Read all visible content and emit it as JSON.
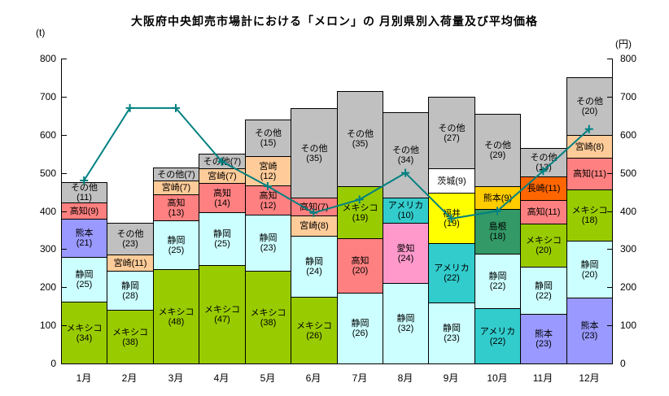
{
  "title": "大阪府中央卸売市場計における「メロン」の 月別県別入荷量及び平均価格",
  "axes": {
    "left_unit": "(t)",
    "right_unit": "(円)",
    "y_min": 0,
    "y_max": 800,
    "y_step": 100
  },
  "chart_data": {
    "type": "bar",
    "subtype": "stacked-percentage-bars-with-price-line",
    "grid": false,
    "legend": false,
    "ylim_left": [
      0,
      800
    ],
    "ylim_right": [
      0,
      800
    ],
    "ylabel_left": "(t)",
    "ylabel_right": "(円)",
    "categories": [
      "1月",
      "2月",
      "3月",
      "4月",
      "5月",
      "6月",
      "7月",
      "8月",
      "9月",
      "10月",
      "11月",
      "12月"
    ],
    "bar_value_unit": "t (total height); segment labels are percent shares",
    "bars": [
      {
        "month": "1月",
        "total": 475,
        "segments": [
          {
            "name": "メキシコ",
            "pct": 34,
            "color": "#99CC00",
            "two_line": true
          },
          {
            "name": "静岡",
            "pct": 25,
            "color": "#CCFFFF",
            "two_line": true
          },
          {
            "name": "熊本",
            "pct": 21,
            "color": "#9999FF",
            "two_line": true
          },
          {
            "name": "高知",
            "pct": 9,
            "color": "#FF8080",
            "two_line": false
          },
          {
            "name": "その他",
            "pct": 11,
            "color": "#C0C0C0",
            "two_line": true
          }
        ]
      },
      {
        "month": "2月",
        "total": 370,
        "segments": [
          {
            "name": "メキシコ",
            "pct": 38,
            "color": "#99CC00",
            "two_line": true
          },
          {
            "name": "静岡",
            "pct": 28,
            "color": "#CCFFFF",
            "two_line": true
          },
          {
            "name": "宮崎",
            "pct": 11,
            "color": "#FFCC99",
            "two_line": false
          },
          {
            "name": "その他",
            "pct": 23,
            "color": "#C0C0C0",
            "two_line": true
          }
        ]
      },
      {
        "month": "3月",
        "total": 515,
        "segments": [
          {
            "name": "メキシコ",
            "pct": 48,
            "color": "#99CC00",
            "two_line": true
          },
          {
            "name": "静岡",
            "pct": 25,
            "color": "#CCFFFF",
            "two_line": true
          },
          {
            "name": "高知",
            "pct": 13,
            "color": "#FF8080",
            "two_line": true
          },
          {
            "name": "宮崎",
            "pct": 7,
            "color": "#FFCC99",
            "two_line": false
          },
          {
            "name": "その他",
            "pct": 7,
            "color": "#C0C0C0",
            "two_line": false
          }
        ]
      },
      {
        "month": "4月",
        "total": 550,
        "segments": [
          {
            "name": "メキシコ",
            "pct": 47,
            "color": "#99CC00",
            "two_line": true
          },
          {
            "name": "静岡",
            "pct": 25,
            "color": "#CCFFFF",
            "two_line": true
          },
          {
            "name": "高知",
            "pct": 14,
            "color": "#FF8080",
            "two_line": true
          },
          {
            "name": "宮崎",
            "pct": 7,
            "color": "#FFCC99",
            "two_line": false
          },
          {
            "name": "その他",
            "pct": 7,
            "color": "#C0C0C0",
            "two_line": false
          }
        ]
      },
      {
        "month": "5月",
        "total": 640,
        "segments": [
          {
            "name": "メキシコ",
            "pct": 38,
            "color": "#99CC00",
            "two_line": true
          },
          {
            "name": "静岡",
            "pct": 23,
            "color": "#CCFFFF",
            "two_line": true
          },
          {
            "name": "高知",
            "pct": 12,
            "color": "#FF8080",
            "two_line": true
          },
          {
            "name": "宮崎",
            "pct": 12,
            "color": "#FFCC99",
            "two_line": true
          },
          {
            "name": "その他",
            "pct": 15,
            "color": "#C0C0C0",
            "two_line": true
          }
        ]
      },
      {
        "month": "6月",
        "total": 670,
        "segments": [
          {
            "name": "メキシコ",
            "pct": 26,
            "color": "#99CC00",
            "two_line": true
          },
          {
            "name": "静岡",
            "pct": 24,
            "color": "#CCFFFF",
            "two_line": true
          },
          {
            "name": "宮崎",
            "pct": 8,
            "color": "#FFCC99",
            "two_line": false
          },
          {
            "name": "高知",
            "pct": 7,
            "color": "#FF8080",
            "two_line": false
          },
          {
            "name": "その他",
            "pct": 35,
            "color": "#C0C0C0",
            "two_line": true
          }
        ]
      },
      {
        "month": "7月",
        "total": 715,
        "segments": [
          {
            "name": "静岡",
            "pct": 26,
            "color": "#CCFFFF",
            "two_line": true
          },
          {
            "name": "高知",
            "pct": 20,
            "color": "#FF8080",
            "two_line": true
          },
          {
            "name": "メキシコ",
            "pct": 19,
            "color": "#99CC00",
            "two_line": true
          },
          {
            "name": "その他",
            "pct": 35,
            "color": "#C0C0C0",
            "two_line": true
          }
        ]
      },
      {
        "month": "8月",
        "total": 660,
        "segments": [
          {
            "name": "静岡",
            "pct": 32,
            "color": "#CCFFFF",
            "two_line": true
          },
          {
            "name": "愛知",
            "pct": 24,
            "color": "#FF99CC",
            "two_line": true
          },
          {
            "name": "アメリカ",
            "pct": 10,
            "color": "#33CCCC",
            "two_line": true
          },
          {
            "name": "その他",
            "pct": 34,
            "color": "#C0C0C0",
            "two_line": true
          }
        ]
      },
      {
        "month": "9月",
        "total": 700,
        "segments": [
          {
            "name": "静岡",
            "pct": 23,
            "color": "#CCFFFF",
            "two_line": true
          },
          {
            "name": "アメリカ",
            "pct": 22,
            "color": "#33CCCC",
            "two_line": true
          },
          {
            "name": "福井",
            "pct": 19,
            "color": "#FFFF00",
            "two_line": true
          },
          {
            "name": "茨城",
            "pct": 9,
            "color": "#FFFFFF",
            "two_line": false
          },
          {
            "name": "その他",
            "pct": 27,
            "color": "#C0C0C0",
            "two_line": true
          }
        ]
      },
      {
        "month": "10月",
        "total": 655,
        "segments": [
          {
            "name": "アメリカ",
            "pct": 22,
            "color": "#33CCCC",
            "two_line": true
          },
          {
            "name": "静岡",
            "pct": 22,
            "color": "#CCFFFF",
            "two_line": true
          },
          {
            "name": "島根",
            "pct": 18,
            "color": "#339966",
            "two_line": true
          },
          {
            "name": "熊本",
            "pct": 9,
            "color": "#FFCC00",
            "two_line": false
          },
          {
            "name": "その他",
            "pct": 29,
            "color": "#C0C0C0",
            "two_line": true
          }
        ]
      },
      {
        "month": "11月",
        "total": 565,
        "segments": [
          {
            "name": "熊本",
            "pct": 23,
            "color": "#9999FF",
            "two_line": true
          },
          {
            "name": "静岡",
            "pct": 22,
            "color": "#CCFFFF",
            "two_line": true
          },
          {
            "name": "メキシコ",
            "pct": 20,
            "color": "#99CC00",
            "two_line": true
          },
          {
            "name": "高知",
            "pct": 11,
            "color": "#FF8080",
            "two_line": false
          },
          {
            "name": "長崎",
            "pct": 11,
            "color": "#FF6600",
            "two_line": false
          },
          {
            "name": "その他",
            "pct": 13,
            "color": "#C0C0C0",
            "two_line": true
          }
        ]
      },
      {
        "month": "12月",
        "total": 750,
        "segments": [
          {
            "name": "熊本",
            "pct": 23,
            "color": "#9999FF",
            "two_line": true
          },
          {
            "name": "静岡",
            "pct": 20,
            "color": "#CCFFFF",
            "two_line": true
          },
          {
            "name": "メキシコ",
            "pct": 18,
            "color": "#99CC00",
            "two_line": true
          },
          {
            "name": "高知",
            "pct": 11,
            "color": "#FF8080",
            "two_line": false
          },
          {
            "name": "宮崎",
            "pct": 8,
            "color": "#FFCC99",
            "two_line": false
          },
          {
            "name": "その他",
            "pct": 20,
            "color": "#C0C0C0",
            "two_line": true
          }
        ]
      }
    ],
    "line_series": {
      "name": "平均価格",
      "unit": "円",
      "color": "#008080",
      "values": [
        480,
        670,
        670,
        530,
        465,
        395,
        430,
        500,
        380,
        400,
        505,
        615
      ]
    }
  }
}
